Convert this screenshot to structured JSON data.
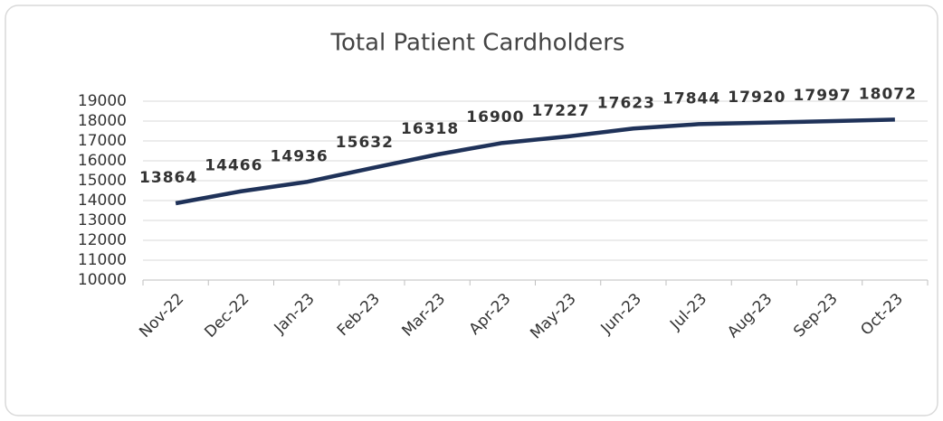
{
  "chart_data": {
    "type": "line",
    "title": "Total Patient Cardholders",
    "categories": [
      "Nov-22",
      "Dec-22",
      "Jan-23",
      "Feb-23",
      "Mar-23",
      "Apr-23",
      "May-23",
      "Jun-23",
      "Jul-23",
      "Aug-23",
      "Sep-23",
      "Oct-23"
    ],
    "series": [
      {
        "name": "Total Patient Cardholders",
        "color": "#1f3259",
        "values": [
          13864,
          14466,
          14936,
          15632,
          16318,
          16900,
          17227,
          17623,
          17844,
          17920,
          17997,
          18072
        ]
      }
    ],
    "ylim": [
      10000,
      19000
    ],
    "yticks": [
      10000,
      11000,
      12000,
      13000,
      14000,
      15000,
      16000,
      17000,
      18000,
      19000
    ],
    "grid": true
  }
}
